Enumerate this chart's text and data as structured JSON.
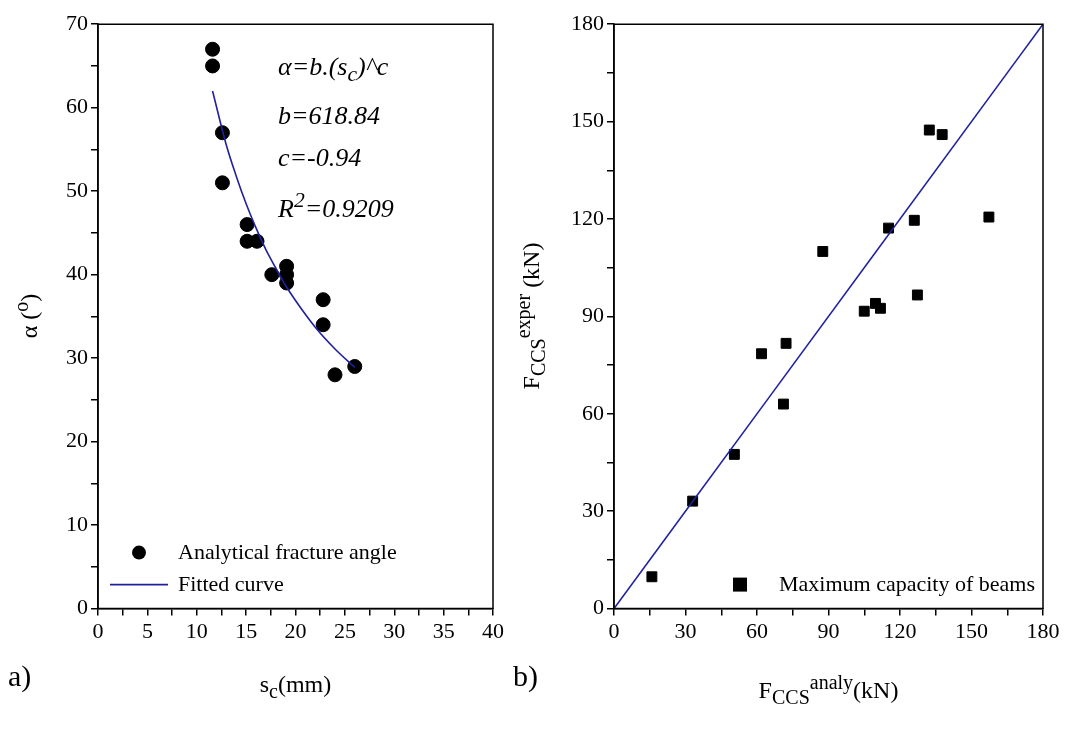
{
  "chart_data": [
    {
      "type": "scatter",
      "xlabel": "s$_{c}$(mm)",
      "ylabel": "α ($^{o}$)",
      "xlim": [
        0,
        40
      ],
      "ylim": [
        0,
        70
      ],
      "xticks": [
        0,
        {
          "value": 2.5,
          "label": null
        },
        5,
        {
          "value": 7.5,
          "label": null
        },
        10,
        {
          "value": 12.5,
          "label": null
        },
        15,
        {
          "value": 17.5,
          "label": null
        },
        20,
        {
          "value": 22.5,
          "label": null
        },
        25,
        {
          "value": 27.5,
          "label": null
        },
        30,
        {
          "value": 32.5,
          "label": null
        },
        35,
        {
          "value": 37.5,
          "label": null
        },
        40
      ],
      "yticks": [
        0,
        {
          "value": 5,
          "label": null
        },
        10,
        {
          "value": 15,
          "label": null
        },
        20,
        {
          "value": 25,
          "label": null
        },
        30,
        {
          "value": 35,
          "label": null
        },
        40,
        {
          "value": 45,
          "label": null
        },
        50,
        {
          "value": 55,
          "label": null
        },
        60,
        {
          "value": 65,
          "label": null
        },
        70
      ],
      "legend": "bottom left",
      "grid": false,
      "annotations": [
        "α=b.(s$_{c}$)^c",
        "b=618.84",
        "c=-0.94",
        "R$^{2}$=0.9209",
        "a)"
      ],
      "series": [
        {
          "name": "Analytical fracture angle",
          "color": "#000000",
          "marker": "circle",
          "x": [
            11.6,
            11.6,
            12.6,
            12.6,
            15.1,
            15.1,
            16.1,
            17.6,
            19.1,
            19.1,
            19.1,
            22.8,
            22.8,
            24.0,
            26.0
          ],
          "values": [
            67,
            65,
            57,
            51,
            46,
            44,
            44,
            40,
            41,
            40,
            39,
            37,
            34,
            28,
            29
          ]
        },
        {
          "name": "Fitted curve",
          "type": "line",
          "color": "#2020a0",
          "marker": "none",
          "x": [
            11.6,
            13,
            14,
            15,
            16,
            17,
            18,
            19,
            20,
            22,
            24,
            26
          ],
          "values": [
            62,
            55.5,
            51.8,
            48.5,
            45.6,
            43,
            40.8,
            38.7,
            36.9,
            33.7,
            31.1,
            28.9
          ]
        }
      ]
    },
    {
      "type": "scatter",
      "xlabel": "F$_{CCS}$$^{analy}$(kN)",
      "ylabel": "F$_{CCS}$$^{exper}$ (kN)",
      "xlim": [
        0,
        180
      ],
      "ylim": [
        0,
        180
      ],
      "xticks": [
        0,
        {
          "value": 15,
          "label": null
        },
        30,
        {
          "value": 45,
          "label": null
        },
        60,
        {
          "value": 75,
          "label": null
        },
        90,
        {
          "value": 105,
          "label": null
        },
        120,
        {
          "value": 135,
          "label": null
        },
        150,
        {
          "value": 165,
          "label": null
        },
        180
      ],
      "yticks": [
        0,
        {
          "value": 15,
          "label": null
        },
        30,
        {
          "value": 45,
          "label": null
        },
        60,
        {
          "value": 75,
          "label": null
        },
        90,
        {
          "value": 105,
          "label": null
        },
        120,
        {
          "value": 135,
          "label": null
        },
        150,
        {
          "value": 165,
          "label": null
        },
        180
      ],
      "legend": "bottom right",
      "grid": false,
      "annotations": [
        "b)"
      ],
      "series": [
        {
          "name": "Maximum capacity of beams",
          "color": "#000000",
          "marker": "square",
          "x": [
            132.3,
            137.7,
            87.6,
            115.2,
            126.0,
            157.3,
            127.3,
            105.0,
            109.7,
            111.8,
            72.2,
            61.9,
            71.1,
            50.5,
            33.0,
            15.9
          ],
          "values": [
            147.4,
            146.0,
            110.0,
            117.2,
            119.6,
            120.6,
            96.6,
            91.6,
            94.0,
            92.5,
            81.7,
            78.5,
            63.0,
            47.5,
            33.1,
            9.8
          ]
        },
        {
          "type": "line",
          "color": "#2020a0",
          "marker": "none",
          "x": [
            0,
            180
          ],
          "values": [
            0,
            180
          ]
        }
      ]
    }
  ]
}
